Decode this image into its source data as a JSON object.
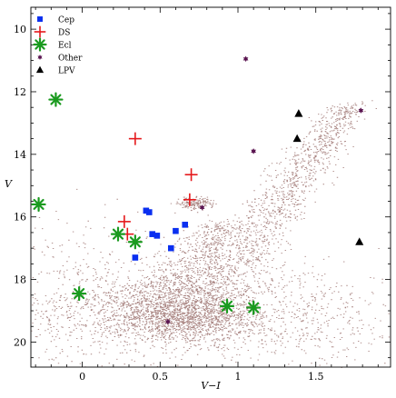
{
  "chart_data": {
    "type": "scatter",
    "title": "",
    "xlabel": "V−I",
    "ylabel": "V",
    "xlim": [
      -0.33,
      1.98
    ],
    "ylim": [
      20.8,
      9.3
    ],
    "y_inverted": true,
    "x_ticks": [
      {
        "value": 0,
        "label": "0"
      },
      {
        "value": 0.5,
        "label": "0.5"
      },
      {
        "value": 1,
        "label": "1"
      },
      {
        "value": 1.5,
        "label": "1.5"
      }
    ],
    "y_ticks": [
      {
        "value": 10,
        "label": "10"
      },
      {
        "value": 12,
        "label": "12"
      },
      {
        "value": 14,
        "label": "14"
      },
      {
        "value": 16,
        "label": "16"
      },
      {
        "value": 18,
        "label": "18"
      },
      {
        "value": 20,
        "label": "20"
      }
    ],
    "legend_position": "top-left",
    "background_field": {
      "description": "field stars (dense dot cloud)",
      "color": "#8b5a55",
      "regions": [
        {
          "cx": 0.65,
          "cy": 19.1,
          "sx": 0.25,
          "sy": 0.45,
          "n": 1900
        },
        {
          "cx": 0.45,
          "cy": 18.9,
          "sx": 0.55,
          "sy": 0.8,
          "n": 900
        },
        {
          "cx": 0.0,
          "cy": 18.6,
          "sx": 0.3,
          "sy": 1.2,
          "n": 350
        },
        {
          "cx": 1.4,
          "cy": 19.3,
          "sx": 0.3,
          "sy": 0.9,
          "n": 420
        },
        {
          "cx": 0.72,
          "cy": 15.55,
          "sx": 0.06,
          "sy": 0.1,
          "n": 160
        }
      ],
      "rgb_branch": {
        "from": [
          0.85,
          18.4
        ],
        "to": [
          1.72,
          12.4
        ],
        "width": 0.22,
        "n": 1250
      },
      "subgiant": {
        "from": [
          0.58,
          18.4
        ],
        "to": [
          0.9,
          16.2
        ],
        "width": 0.25,
        "n": 600
      }
    },
    "series": [
      {
        "name": "Cep",
        "marker": "square",
        "color": "#0a2ff0",
        "points": [
          [
            0.41,
            15.8
          ],
          [
            0.43,
            15.85
          ],
          [
            0.45,
            16.55
          ],
          [
            0.48,
            16.6
          ],
          [
            0.57,
            17.0
          ],
          [
            0.6,
            16.45
          ],
          [
            0.66,
            16.25
          ],
          [
            0.34,
            17.3
          ]
        ]
      },
      {
        "name": "DS",
        "marker": "plus",
        "color": "#e5181b",
        "points": [
          [
            0.34,
            13.5
          ],
          [
            0.7,
            14.65
          ],
          [
            0.69,
            15.45
          ],
          [
            0.27,
            16.15
          ],
          [
            0.29,
            16.55
          ]
        ]
      },
      {
        "name": "Ecl",
        "marker": "asterisk",
        "color": "#1a9a1f",
        "points": [
          [
            -0.17,
            12.25
          ],
          [
            -0.28,
            15.6
          ],
          [
            0.23,
            16.55
          ],
          [
            0.34,
            16.8
          ],
          [
            -0.02,
            18.45
          ],
          [
            0.93,
            18.85
          ],
          [
            1.1,
            18.9
          ]
        ]
      },
      {
        "name": "Other",
        "marker": "star",
        "color": "#5a1450",
        "points": [
          [
            1.05,
            10.95
          ],
          [
            1.1,
            13.9
          ],
          [
            1.79,
            12.6
          ],
          [
            0.77,
            15.7
          ],
          [
            0.55,
            19.35
          ]
        ]
      },
      {
        "name": "LPV",
        "marker": "triangle",
        "color": "#000000",
        "points": [
          [
            1.39,
            12.7
          ],
          [
            1.38,
            13.5
          ],
          [
            1.78,
            16.8
          ]
        ]
      }
    ]
  }
}
